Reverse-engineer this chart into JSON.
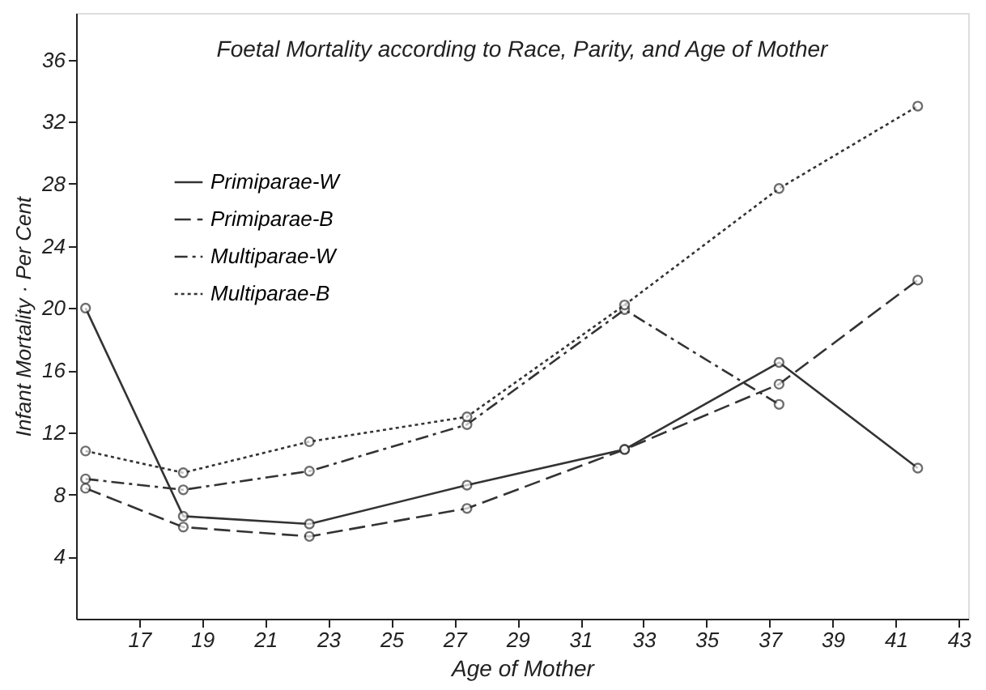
{
  "chart_data": {
    "type": "line",
    "title": "Foetal Mortality according to Race, Parity, and Age of Mother",
    "xlabel": "Age of Mother",
    "ylabel": "Infant Mortality · Per Cent",
    "x": [
      15.3,
      18.4,
      22.4,
      27.4,
      32.4,
      37.3,
      41.7
    ],
    "series": [
      {
        "name": "Primiparae-W",
        "color": "#333333",
        "line_style": "solid",
        "values": [
          20.0,
          6.6,
          6.1,
          8.6,
          10.9,
          16.5,
          9.7
        ]
      },
      {
        "name": "Primiparae-B",
        "color": "#333333",
        "line_style": "dashed",
        "values": [
          8.4,
          5.9,
          5.3,
          7.1,
          10.9,
          15.1,
          21.8
        ]
      },
      {
        "name": "Multiparae-W",
        "color": "#333333",
        "line_style": "dashdot",
        "values": [
          9.0,
          8.3,
          9.5,
          12.5,
          19.9,
          13.8,
          null
        ]
      },
      {
        "name": "Multiparae-B",
        "color": "#333333",
        "line_style": "dotted",
        "values": [
          10.8,
          9.4,
          11.4,
          13.0,
          20.2,
          27.7,
          33.0
        ]
      }
    ],
    "xlim": [
      15,
      43.3
    ],
    "xticks": [
      17,
      19,
      21,
      23,
      25,
      27,
      29,
      31,
      33,
      35,
      37,
      39,
      41,
      43
    ],
    "ylim": [
      0,
      39
    ],
    "yticks": [
      4,
      8,
      12,
      16,
      20,
      24,
      28,
      32,
      36
    ],
    "marker": "circle",
    "grid": false,
    "legend": "top left"
  }
}
